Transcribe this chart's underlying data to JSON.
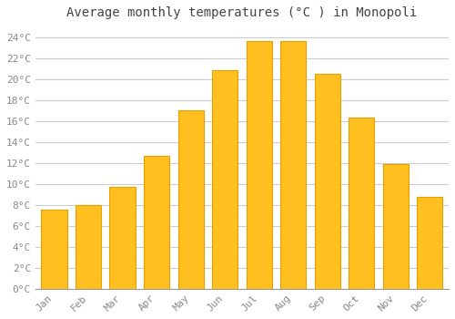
{
  "title": "Average monthly temperatures (°C ) in Monopoli",
  "months": [
    "Jan",
    "Feb",
    "Mar",
    "Apr",
    "May",
    "Jun",
    "Jul",
    "Aug",
    "Sep",
    "Oct",
    "Nov",
    "Dec"
  ],
  "temperatures": [
    7.5,
    8.0,
    9.7,
    12.7,
    17.0,
    20.8,
    23.6,
    23.6,
    20.5,
    16.3,
    11.9,
    8.8
  ],
  "bar_color": "#FFC020",
  "bar_edge_color": "#E8A000",
  "background_color": "#FFFFFF",
  "plot_bg_color": "#FFFFFF",
  "grid_color": "#CCCCCC",
  "ylim": [
    0,
    25
  ],
  "ytick_step": 2,
  "title_fontsize": 10,
  "tick_fontsize": 8,
  "tick_color": "#888888",
  "title_color": "#444444",
  "font_family": "monospace"
}
